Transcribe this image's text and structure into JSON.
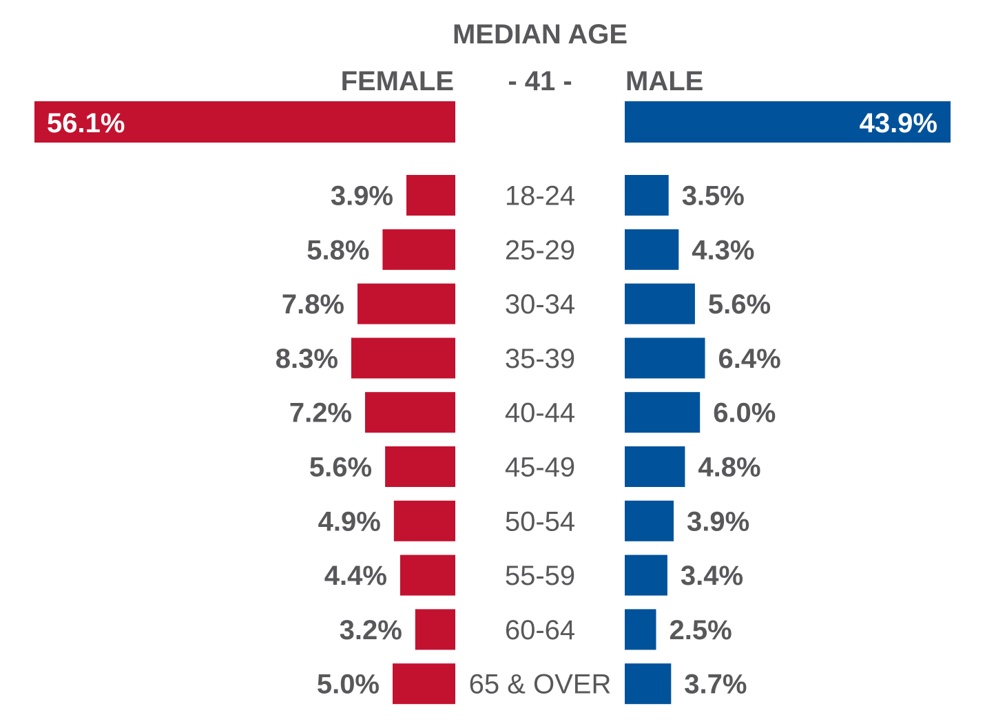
{
  "chart_data": {
    "type": "bar",
    "title": "MEDIAN AGE",
    "median_value": "- 41 -",
    "totals": [
      {
        "name": "FEMALE",
        "value": 56.1,
        "label": "56.1%"
      },
      {
        "name": "MALE",
        "value": 43.9,
        "label": "43.9%"
      }
    ],
    "categories": [
      "18-24",
      "25-29",
      "30-34",
      "35-39",
      "40-44",
      "45-49",
      "50-54",
      "55-59",
      "60-64",
      "65 & OVER"
    ],
    "series": [
      {
        "name": "FEMALE",
        "color": "#c3122f",
        "values": [
          3.9,
          5.8,
          7.8,
          8.3,
          7.2,
          5.6,
          4.9,
          4.4,
          3.2,
          5.0
        ],
        "labels": [
          "3.9%",
          "5.8%",
          "7.8%",
          "8.3%",
          "7.2%",
          "5.6%",
          "4.9%",
          "4.4%",
          "3.2%",
          "5.0%"
        ]
      },
      {
        "name": "MALE",
        "color": "#00529b",
        "values": [
          3.5,
          4.3,
          5.6,
          6.4,
          6.0,
          4.8,
          3.9,
          3.4,
          2.5,
          3.7
        ],
        "labels": [
          "3.5%",
          "4.3%",
          "5.6%",
          "6.4%",
          "6.0%",
          "4.8%",
          "3.9%",
          "3.4%",
          "2.5%",
          "3.7%"
        ]
      }
    ],
    "text_color": "#58585a",
    "legend": "top",
    "grid": false
  }
}
